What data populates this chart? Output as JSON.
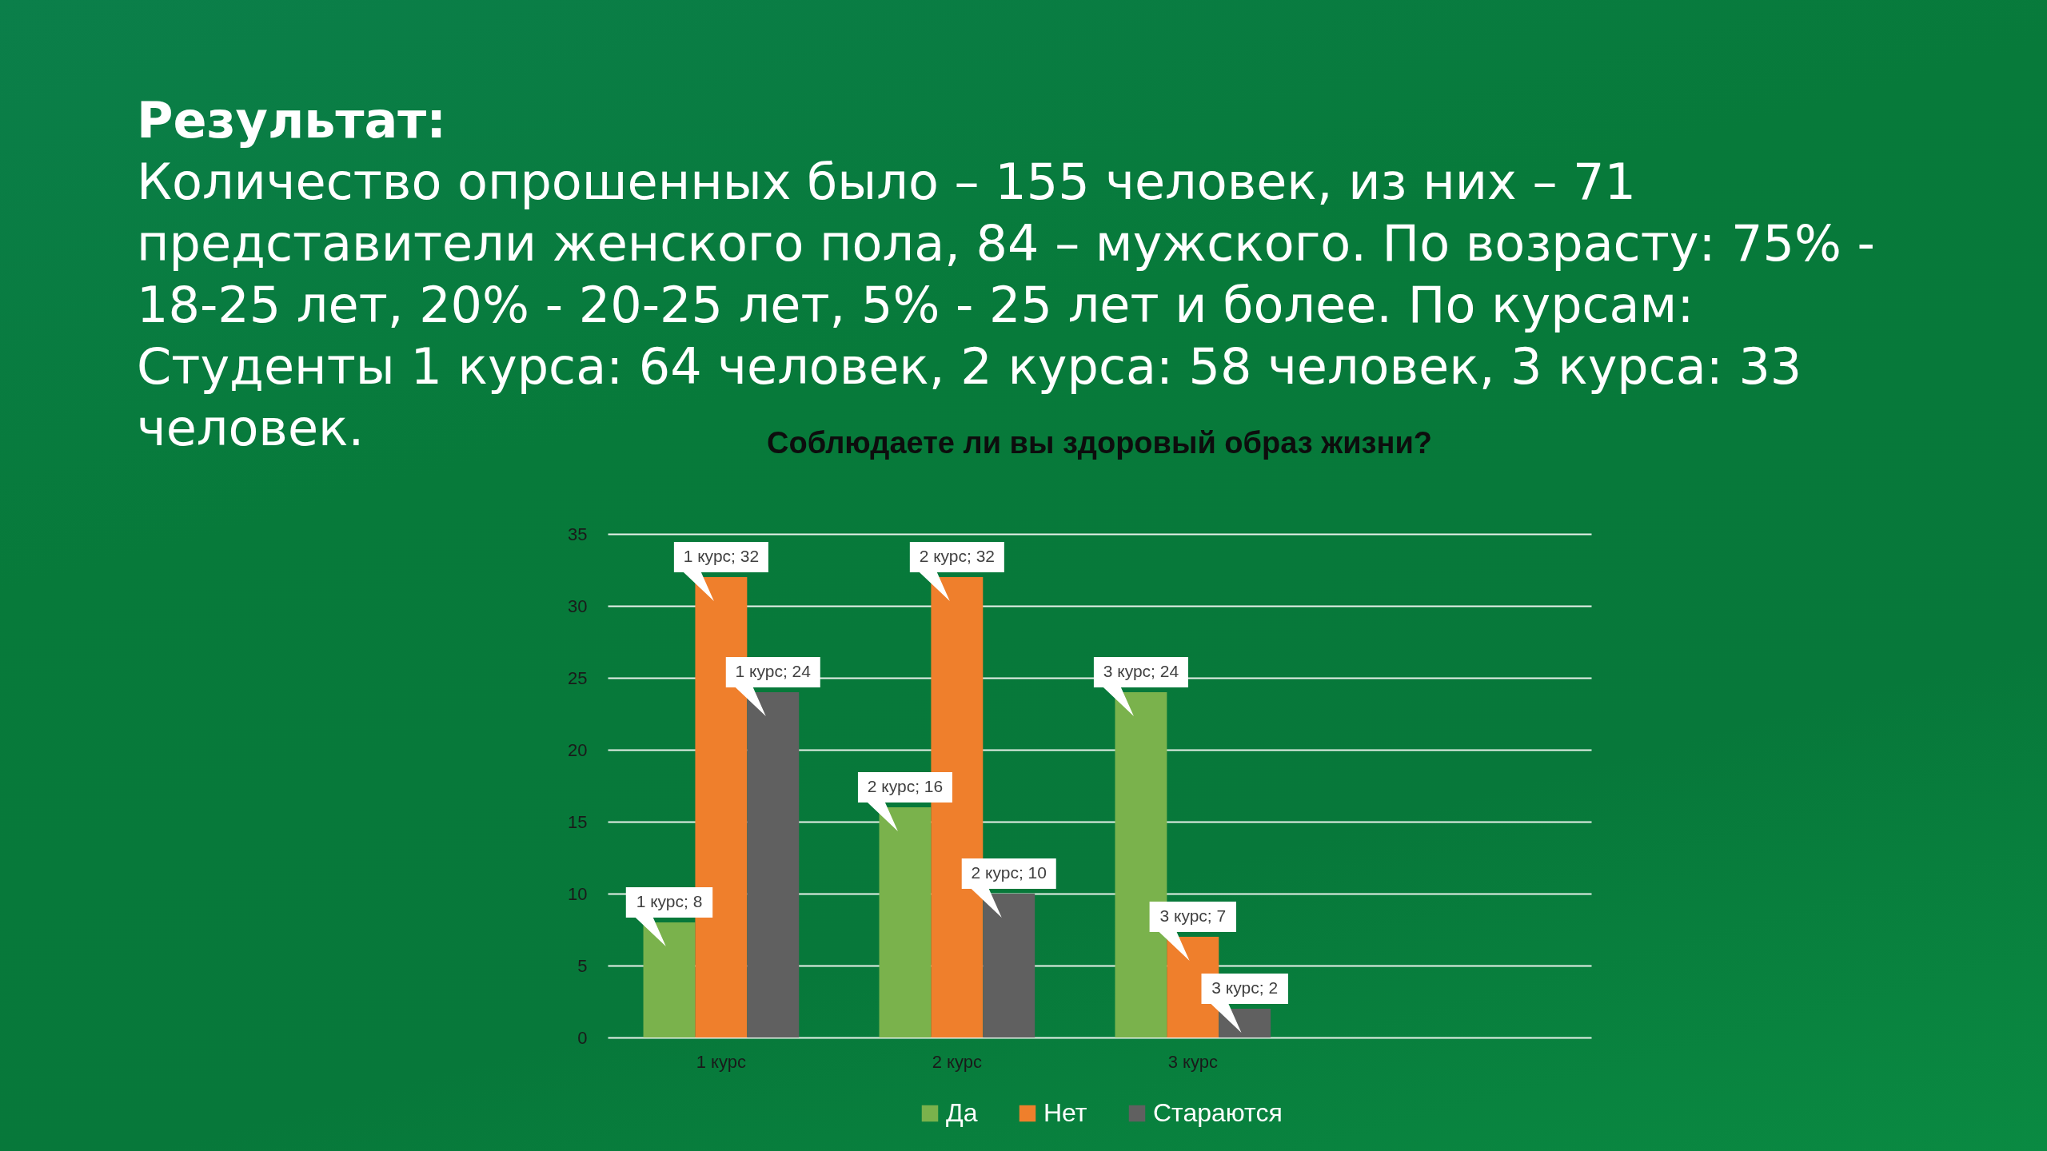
{
  "chart_data": {
    "type": "bar",
    "title": "Соблюдаете ли вы здоровый образ жизни?",
    "annotations": [
      "Результат:",
      "Количество опрошенных было – 155 человек, из них – 71 представители женского пола, 84 – мужского. По возрасту: 75% - 18-25 лет, 20% - 20-25 лет, 5% - 25 лет и более. По курсам: Студенты 1 курса: 64 человек, 2 курса: 58 человек, 3 курса: 33 человек."
    ],
    "categories": [
      "1 курс",
      "2 курс",
      "3 курс"
    ],
    "series": [
      {
        "name": "Да",
        "color": "#7ab24c",
        "values": [
          8,
          16,
          24
        ],
        "value_labels": [
          "1 курс; 8",
          "2 курс; 16",
          "3 курс; 24"
        ]
      },
      {
        "name": "Нет",
        "color": "#ef7f2c",
        "values": [
          32,
          32,
          7
        ],
        "value_labels": [
          "1 курс; 32",
          "2 курс; 32",
          "3 курс; 7"
        ]
      },
      {
        "name": "Стараются",
        "color": "#606060",
        "values": [
          24,
          10,
          2
        ],
        "value_labels": [
          "1 курс; 24",
          "2 курс; 10",
          "3 курс; 2"
        ]
      }
    ],
    "ylim": [
      0,
      35
    ],
    "yticks": [
      0,
      5,
      10,
      15,
      20,
      25,
      30,
      35
    ],
    "grid": "y",
    "legend": "bottom"
  }
}
